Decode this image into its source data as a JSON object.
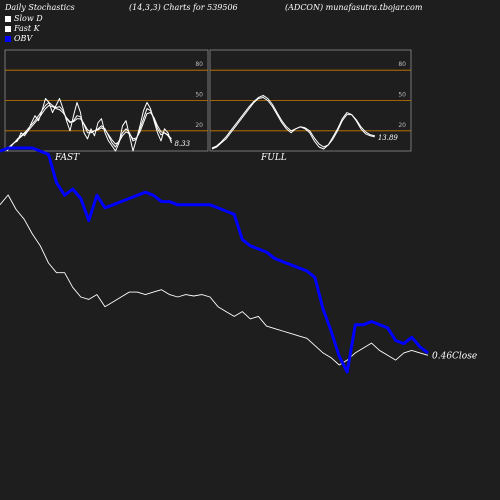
{
  "header": {
    "left": "Daily Stochastics",
    "middle": "(14,3,3) Charts for 539506",
    "right": "(ADCON) munafasutra.tbojar.com"
  },
  "legend": [
    {
      "label": "Slow  D",
      "color": "#ffffff"
    },
    {
      "label": "Fast K",
      "color": "#ffffff"
    },
    {
      "label": "OBV",
      "color": "#0000ff"
    }
  ],
  "colors": {
    "background": "#1e1e1e",
    "guide": "#cc7a00",
    "price": "#ffffff",
    "obv": "#0000ff"
  },
  "chart_data": [
    {
      "type": "line",
      "panel": "FAST",
      "title": "FAST",
      "ylim": [
        0,
        100
      ],
      "yticks": [
        20,
        50,
        80
      ],
      "ytick_labels": [
        "20",
        "50",
        "80"
      ],
      "last_value_label": "8.33",
      "series": [
        {
          "values": [
            0,
            5,
            8,
            10,
            18,
            15,
            20,
            28,
            35,
            30,
            40,
            52,
            48,
            38,
            45,
            52,
            42,
            30,
            20,
            35,
            48,
            38,
            18,
            12,
            22,
            15,
            28,
            32,
            18,
            10,
            5,
            0,
            8,
            25,
            30,
            15,
            0,
            12,
            25,
            40,
            48,
            42,
            30,
            18,
            10,
            22,
            18,
            8
          ]
        },
        {
          "values": [
            2,
            4,
            8,
            12,
            15,
            18,
            22,
            26,
            30,
            35,
            40,
            45,
            48,
            45,
            43,
            44,
            40,
            32,
            28,
            30,
            35,
            34,
            26,
            18,
            18,
            20,
            22,
            25,
            22,
            15,
            8,
            4,
            10,
            18,
            22,
            18,
            10,
            12,
            22,
            32,
            42,
            40,
            32,
            22,
            16,
            18,
            15,
            10
          ]
        },
        {
          "values": [
            3,
            5,
            8,
            11,
            14,
            17,
            20,
            24,
            28,
            32,
            37,
            42,
            45,
            44,
            42,
            41,
            38,
            33,
            29,
            29,
            32,
            32,
            27,
            21,
            19,
            20,
            21,
            23,
            21,
            16,
            11,
            7,
            9,
            15,
            19,
            17,
            12,
            13,
            19,
            28,
            37,
            38,
            33,
            25,
            19,
            18,
            16,
            12
          ]
        }
      ]
    },
    {
      "type": "line",
      "panel": "FULL",
      "title": "FULL",
      "ylim": [
        0,
        100
      ],
      "yticks": [
        20,
        50,
        80
      ],
      "ytick_labels": [
        "20",
        "50",
        "80"
      ],
      "last_value_label": "13.89",
      "series": [
        {
          "values": [
            2,
            4,
            8,
            12,
            18,
            24,
            30,
            36,
            42,
            48,
            52,
            53,
            50,
            44,
            36,
            28,
            22,
            18,
            22,
            24,
            22,
            18,
            10,
            4,
            2,
            6,
            14,
            22,
            32,
            38,
            36,
            30,
            22,
            17,
            15,
            14
          ]
        },
        {
          "values": [
            3,
            5,
            9,
            14,
            20,
            26,
            32,
            38,
            44,
            49,
            53,
            55,
            52,
            46,
            38,
            30,
            24,
            20,
            22,
            24,
            23,
            20,
            13,
            7,
            4,
            6,
            12,
            20,
            30,
            36,
            36,
            31,
            24,
            19,
            16,
            15
          ]
        }
      ]
    },
    {
      "type": "line",
      "panel": "price",
      "last_value_label": "0.46Close",
      "series": [
        {
          "name": "Close",
          "values": [
            3.6,
            3.8,
            3.5,
            3.3,
            3.0,
            2.75,
            2.4,
            2.2,
            2.2,
            1.9,
            1.7,
            1.65,
            1.75,
            1.5,
            1.6,
            1.7,
            1.8,
            1.8,
            1.75,
            1.8,
            1.85,
            1.75,
            1.7,
            1.75,
            1.72,
            1.75,
            1.7,
            1.5,
            1.4,
            1.3,
            1.4,
            1.25,
            1.3,
            1.1,
            1.05,
            1.0,
            0.95,
            0.9,
            0.85,
            0.7,
            0.55,
            0.45,
            0.3,
            0.4,
            0.55,
            0.65,
            0.75,
            0.6,
            0.5,
            0.4,
            0.55,
            0.6,
            0.55,
            0.5
          ]
        },
        {
          "name": "OBV",
          "values": [
            6.0,
            6.1,
            6.1,
            6.1,
            6.1,
            6.0,
            5.9,
            5.0,
            4.6,
            4.8,
            4.5,
            3.8,
            4.6,
            4.2,
            4.3,
            4.4,
            4.5,
            4.6,
            4.7,
            4.6,
            4.4,
            4.4,
            4.3,
            4.3,
            4.3,
            4.3,
            4.3,
            4.2,
            4.1,
            4.0,
            3.2,
            3.0,
            2.9,
            2.8,
            2.6,
            2.5,
            2.4,
            2.3,
            2.2,
            2.0,
            1.0,
            0.3,
            -0.5,
            -1.0,
            0.5,
            0.5,
            0.6,
            0.5,
            0.4,
            0.0,
            -0.1,
            0.1,
            -0.2,
            -0.4
          ]
        }
      ]
    }
  ]
}
